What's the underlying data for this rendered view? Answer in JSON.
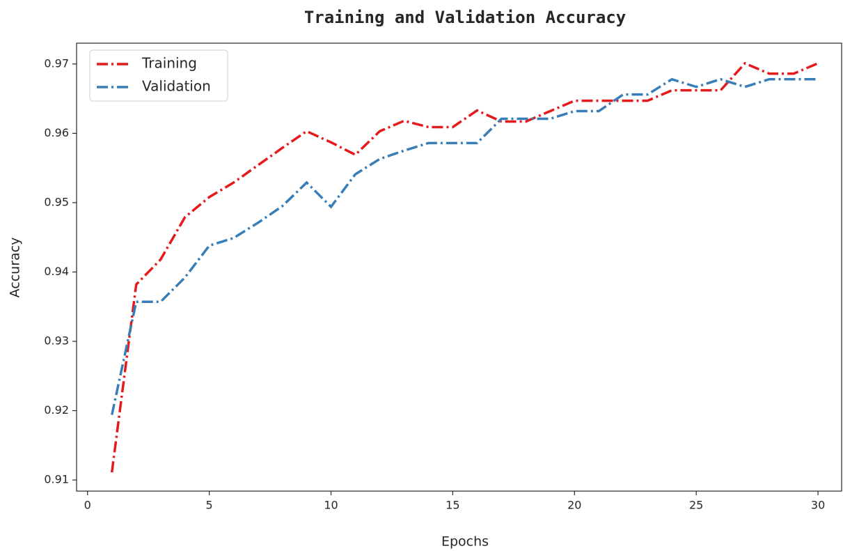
{
  "chart_data": {
    "type": "line",
    "title": "Training and Validation Accuracy",
    "x_label": "Epochs",
    "y_label": "Accuracy",
    "x": [
      1,
      2,
      3,
      4,
      5,
      6,
      7,
      8,
      9,
      10,
      11,
      12,
      13,
      14,
      15,
      16,
      17,
      18,
      19,
      20,
      21,
      22,
      23,
      24,
      25,
      26,
      27,
      28,
      29,
      30
    ],
    "series": [
      {
        "name": "Training",
        "color": "#e41a1c",
        "values": [
          0.9111,
          0.9382,
          0.9418,
          0.9479,
          0.9508,
          0.9529,
          0.9554,
          0.9579,
          0.9603,
          0.9587,
          0.9569,
          0.9603,
          0.9618,
          0.9609,
          0.9609,
          0.9633,
          0.9617,
          0.9617,
          0.9632,
          0.9647,
          0.9647,
          0.9647,
          0.9647,
          0.9662,
          0.9662,
          0.9662,
          0.9701,
          0.9686,
          0.9686,
          0.9701
        ]
      },
      {
        "name": "Validation",
        "color": "#377eb8",
        "values": [
          0.9194,
          0.9357,
          0.9357,
          0.9392,
          0.9438,
          0.9449,
          0.9471,
          0.9495,
          0.9529,
          0.9494,
          0.9541,
          0.9563,
          0.9575,
          0.9586,
          0.9586,
          0.9586,
          0.9621,
          0.9621,
          0.9621,
          0.9632,
          0.9632,
          0.9656,
          0.9656,
          0.9678,
          0.9667,
          0.9678,
          0.9667,
          0.9678,
          0.9678,
          0.9678
        ]
      }
    ],
    "xlim": [
      -0.45,
      30.97
    ],
    "ylim": [
      0.9084,
      0.973
    ],
    "xticks": [
      0,
      5,
      10,
      15,
      20,
      25,
      30
    ],
    "yticks": [
      0.91,
      0.92,
      0.93,
      0.94,
      0.95,
      0.96,
      0.97
    ],
    "legend": "upper left",
    "grid": false
  }
}
